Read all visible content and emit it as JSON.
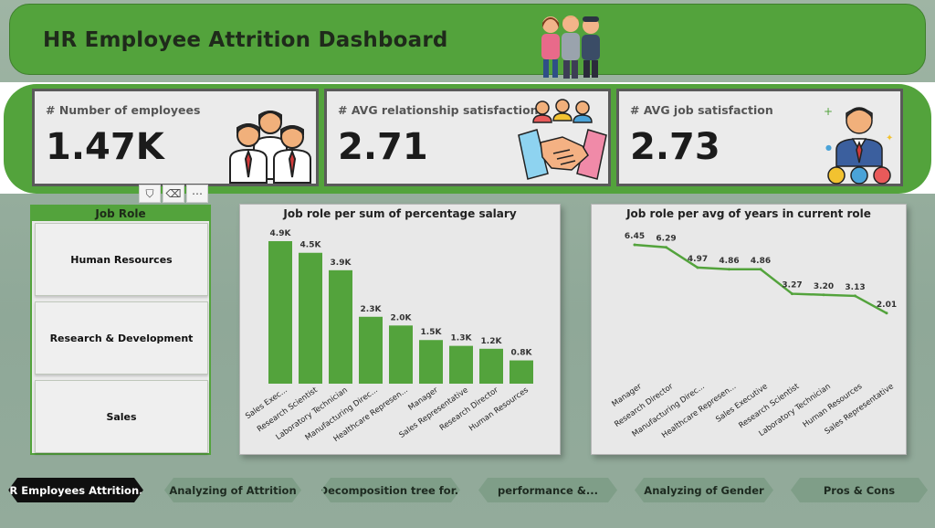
{
  "header": {
    "title": "HR Employee Attrition Dashboard",
    "illustration_icon": "people-group-icon"
  },
  "kpis": [
    {
      "label": "# Number of employees",
      "value": "1.47K",
      "icon": "employees-group-icon"
    },
    {
      "label": "# AVG relationship satisfaction",
      "value": "2.71",
      "icon": "handshake-team-icon"
    },
    {
      "label": "# AVG job satisfaction",
      "value": "2.73",
      "icon": "satisfied-employee-icon"
    }
  ],
  "slicer": {
    "title": "Job Role",
    "items": [
      "Human Resources",
      "Research & Development",
      "Sales"
    ],
    "tools": [
      "filter-icon",
      "eraser-icon",
      "more-options-icon"
    ]
  },
  "chart_data": [
    {
      "type": "bar",
      "title": "Job role per sum of percentage salary",
      "categories": [
        "Sales Exec...",
        "Research Scientist",
        "Laboratory Technician",
        "Manufacturing Direc...",
        "Healthcare Represen...",
        "Manager",
        "Sales Representative",
        "Research Director",
        "Human Resources"
      ],
      "values": [
        4.9,
        4.5,
        3.9,
        2.3,
        2.0,
        1.5,
        1.3,
        1.2,
        0.8
      ],
      "value_labels": [
        "4.9K",
        "4.5K",
        "3.9K",
        "2.3K",
        "2.0K",
        "1.5K",
        "1.3K",
        "1.2K",
        "0.8K"
      ],
      "unit": "K",
      "color": "#53a33c"
    },
    {
      "type": "line",
      "title": "Job role per avg of years in current role",
      "categories": [
        "Manager",
        "Research Director",
        "Manufacturing Direc...",
        "Healthcare Represen...",
        "Sales Executive",
        "Research Scientist",
        "Laboratory Technician",
        "Human Resources",
        "Sales Representative"
      ],
      "values": [
        6.45,
        6.29,
        4.97,
        4.86,
        4.86,
        3.27,
        3.2,
        3.13,
        2.01
      ],
      "value_labels": [
        "6.45",
        "6.29",
        "4.97",
        "4.86",
        "4.86",
        "3.27",
        "3.20",
        "3.13",
        "2.01"
      ],
      "color": "#53a33c"
    }
  ],
  "nav": [
    {
      "label": "HR Employees Attrition...",
      "active": true
    },
    {
      "label": "Analyzing of Attrition",
      "active": false
    },
    {
      "label": "Decomposition tree for..",
      "active": false
    },
    {
      "label": "performance &...",
      "active": false
    },
    {
      "label": "Analyzing of Gender",
      "active": false
    },
    {
      "label": "Pros & Cons",
      "active": false
    }
  ]
}
